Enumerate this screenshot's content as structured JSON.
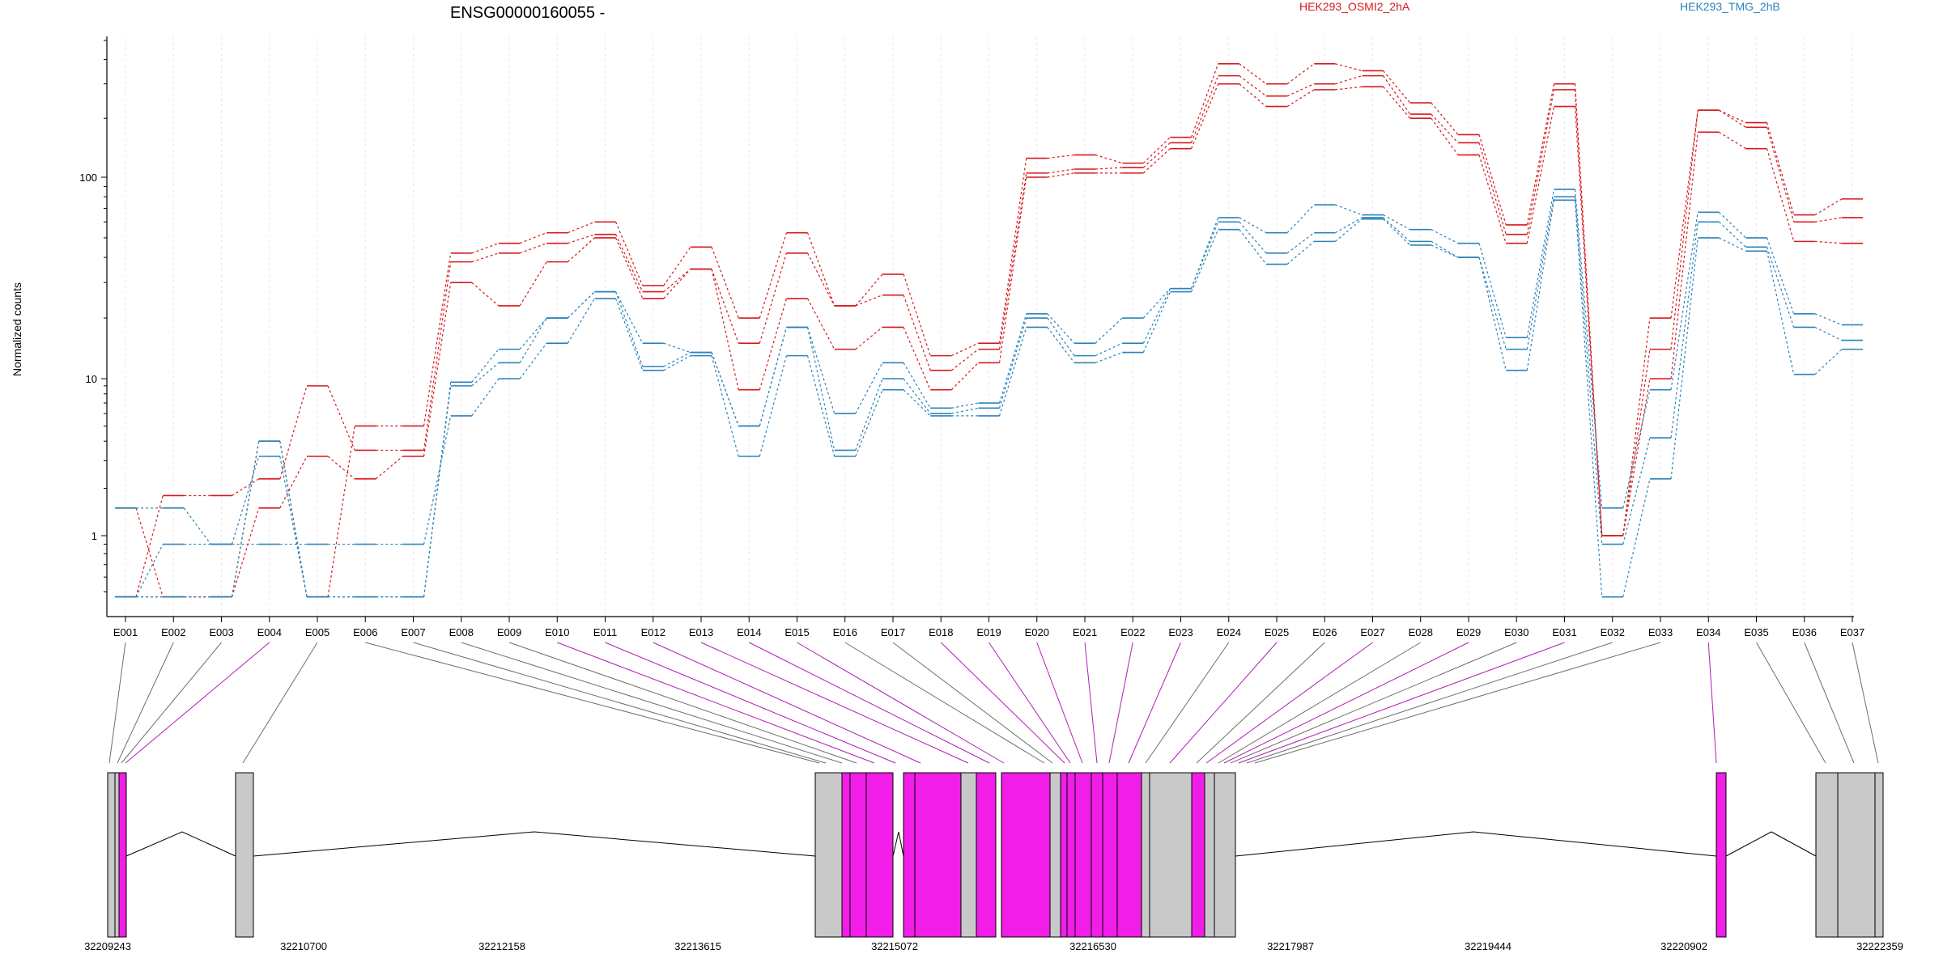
{
  "title": "ENSG00000160055 -",
  "legend": [
    {
      "name": "HEK293_OSMI2_2hA",
      "color": "#d7191c"
    },
    {
      "name": "HEK293_TMG_2hB",
      "color": "#2b83ba"
    }
  ],
  "chart_data": {
    "type": "line",
    "title": "ENSG00000160055 -",
    "ylabel": "Normalized counts",
    "xlabel": "",
    "y_scale": "log",
    "ylim": [
      0.45,
      500
    ],
    "y_ticks": [
      1,
      10,
      100
    ],
    "y_tick_labels": [
      "1",
      "10",
      "100"
    ],
    "categories": [
      "E001",
      "E002",
      "E003",
      "E004",
      "E005",
      "E006",
      "E007",
      "E008",
      "E009",
      "E010",
      "E011",
      "E012",
      "E013",
      "E014",
      "E015",
      "E016",
      "E017",
      "E018",
      "E019",
      "E020",
      "E021",
      "E022",
      "E023",
      "E024",
      "E025",
      "E026",
      "E027",
      "E028",
      "E029",
      "E030",
      "E031",
      "E032",
      "E033",
      "E034",
      "E035",
      "E036",
      "E037"
    ],
    "grid": "vertical-dotted",
    "series": [
      {
        "name": "HEK293_OSMI2_2hA",
        "group": "HEK293_OSMI2_2hA",
        "color": "#d7191c",
        "values": [
          1.5,
          0.47,
          0.47,
          1.5,
          3.2,
          2.3,
          3.2,
          30,
          23,
          38,
          50,
          25,
          35,
          8.5,
          25,
          14,
          18,
          8.5,
          12,
          100,
          105,
          105,
          140,
          300,
          230,
          280,
          290,
          200,
          130,
          47,
          230,
          1.0,
          10,
          170,
          140,
          48,
          47
        ]
      },
      {
        "name": "HEK293_OSMI2_2hA",
        "group": "HEK293_OSMI2_2hA",
        "color": "#d7191c",
        "values": [
          0.47,
          1.8,
          1.8,
          2.3,
          9,
          3.5,
          3.5,
          38,
          42,
          47,
          52,
          27,
          35,
          15,
          42,
          23,
          26,
          11,
          14,
          105,
          110,
          112,
          150,
          330,
          260,
          300,
          330,
          210,
          150,
          52,
          280,
          1.0,
          14,
          220,
          180,
          60,
          63
        ]
      },
      {
        "name": "HEK293_OSMI2_2hA",
        "group": "HEK293_OSMI2_2hA",
        "color": "#d7191c",
        "values": [
          0.47,
          0.47,
          0.47,
          4.0,
          0.47,
          5,
          5,
          42,
          47,
          53,
          60,
          29,
          45,
          20,
          53,
          23,
          33,
          13,
          15,
          125,
          130,
          118,
          160,
          380,
          300,
          380,
          350,
          240,
          165,
          58,
          300,
          1.0,
          20,
          220,
          190,
          65,
          78
        ]
      },
      {
        "name": "HEK293_TMG_2hB",
        "group": "HEK293_TMG_2hB",
        "color": "#2b83ba",
        "values": [
          1.5,
          1.5,
          0.9,
          0.9,
          0.9,
          0.9,
          0.9,
          5.8,
          10,
          15,
          25,
          11,
          13,
          3.2,
          13,
          3.2,
          8.5,
          5.8,
          5.8,
          18,
          12,
          13.5,
          27,
          55,
          37,
          48,
          62,
          46,
          40,
          11,
          77,
          0.47,
          2.3,
          50,
          43,
          10.5,
          14
        ]
      },
      {
        "name": "HEK293_TMG_2hB",
        "group": "HEK293_TMG_2hB",
        "color": "#2b83ba",
        "values": [
          0.47,
          0.9,
          0.9,
          3.2,
          0.47,
          0.47,
          0.47,
          9,
          12,
          20,
          27,
          11.5,
          13.5,
          5,
          18,
          3.5,
          10,
          6,
          6.5,
          20,
          13,
          15,
          28,
          60,
          42,
          53,
          63,
          48,
          40,
          14,
          80,
          0.9,
          4.2,
          60,
          45,
          18,
          15.5
        ]
      },
      {
        "name": "HEK293_TMG_2hB",
        "group": "HEK293_TMG_2hB",
        "color": "#2b83ba",
        "values": [
          0.47,
          0.47,
          0.47,
          4.0,
          0.47,
          0.47,
          0.47,
          9.5,
          14,
          20,
          27,
          15,
          13.5,
          5,
          18,
          6,
          12,
          6.5,
          7,
          21,
          15,
          20,
          28,
          63,
          53,
          73,
          65,
          55,
          47,
          16,
          87,
          1.5,
          8.5,
          67,
          50,
          21,
          18.5
        ]
      }
    ],
    "genomic_axis": {
      "tick_labels": [
        "32209243",
        "32210700",
        "32212158",
        "32213615",
        "32215072",
        "32216530",
        "32217987",
        "32219444",
        "32220902",
        "32222359"
      ],
      "range": [
        32209243,
        32222359
      ]
    }
  }
}
